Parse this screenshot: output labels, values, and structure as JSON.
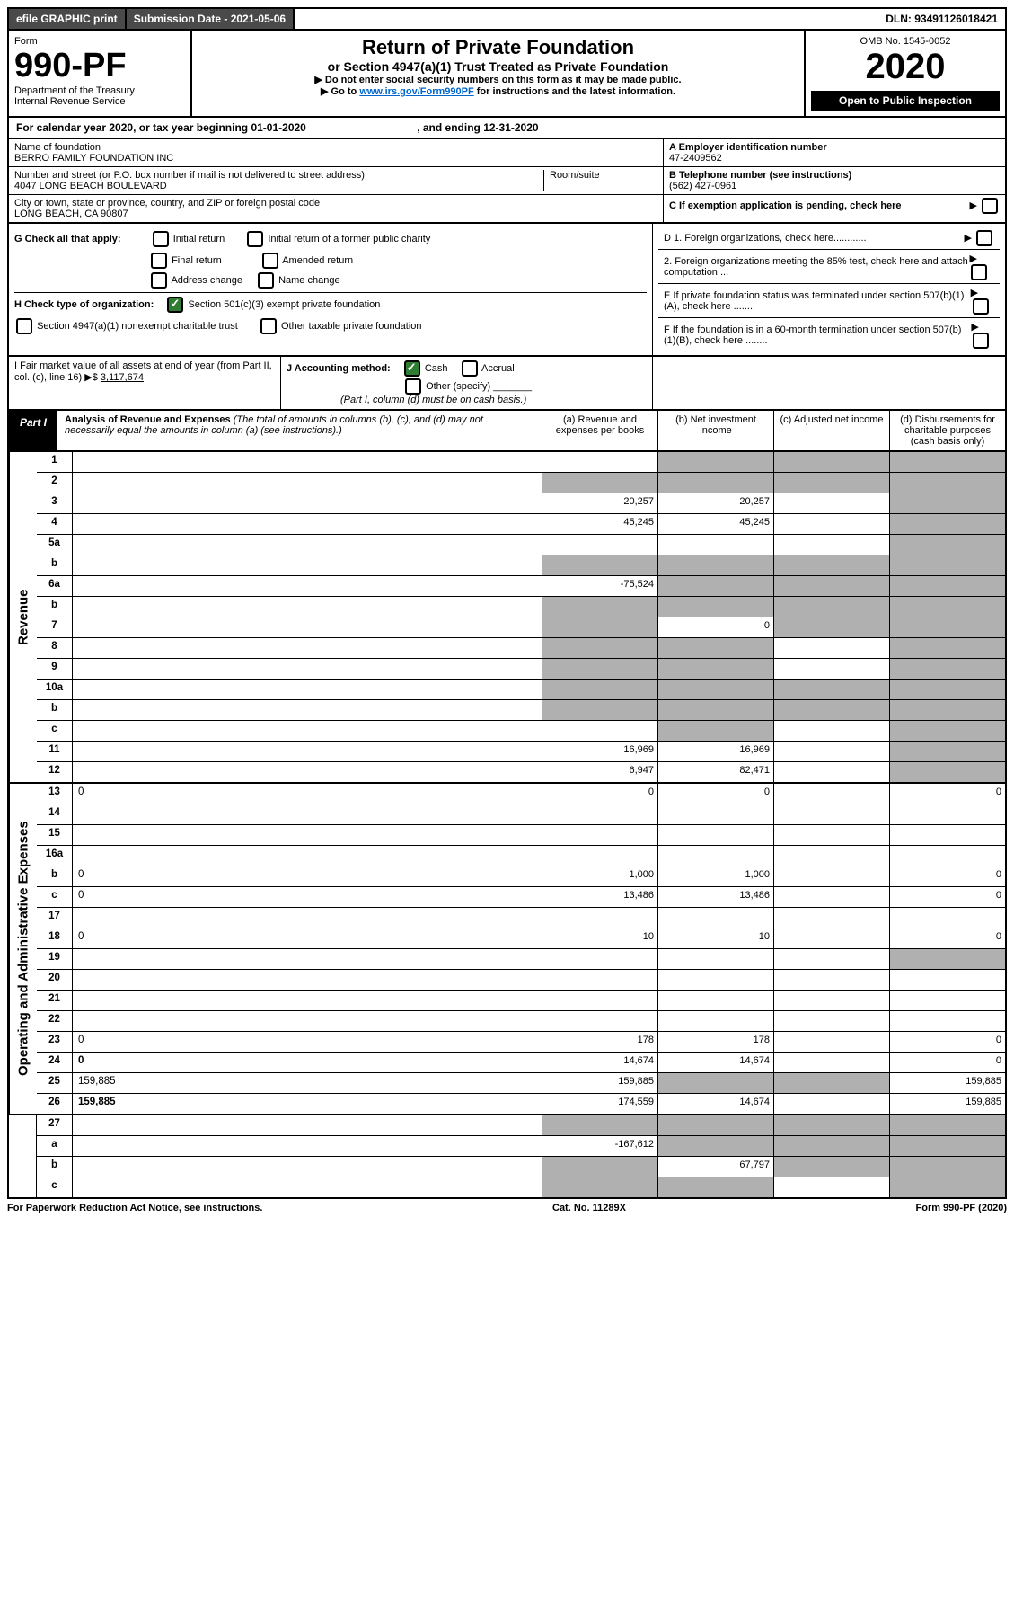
{
  "top": {
    "efile": "efile GRAPHIC print",
    "submission": "Submission Date - 2021-05-06",
    "dln": "DLN: 93491126018421"
  },
  "header": {
    "form_word": "Form",
    "form_no": "990-PF",
    "dept": "Department of the Treasury",
    "irs": "Internal Revenue Service",
    "title": "Return of Private Foundation",
    "subtitle": "or Section 4947(a)(1) Trust Treated as Private Foundation",
    "note1": "▶ Do not enter social security numbers on this form as it may be made public.",
    "note2_pre": "▶ Go to ",
    "note2_link": "www.irs.gov/Form990PF",
    "note2_post": " for instructions and the latest information.",
    "omb": "OMB No. 1545-0052",
    "year": "2020",
    "open": "Open to Public Inspection"
  },
  "calendar": {
    "text_pre": "For calendar year 2020, or tax year beginning ",
    "begin": "01-01-2020",
    "text_mid": " , and ending ",
    "end": "12-31-2020"
  },
  "entity": {
    "name_label": "Name of foundation",
    "name": "BERRO FAMILY FOUNDATION INC",
    "addr_label": "Number and street (or P.O. box number if mail is not delivered to street address)",
    "addr": "4047 LONG BEACH BOULEVARD",
    "room_label": "Room/suite",
    "city_label": "City or town, state or province, country, and ZIP or foreign postal code",
    "city": "LONG BEACH, CA  90807",
    "a_label": "A Employer identification number",
    "a_val": "47-2409562",
    "b_label": "B Telephone number (see instructions)",
    "b_val": "(562) 427-0961",
    "c_label": "C If exemption application is pending, check here"
  },
  "checks": {
    "g_label": "G Check all that apply:",
    "g1": "Initial return",
    "g2": "Initial return of a former public charity",
    "g3": "Final return",
    "g4": "Amended return",
    "g5": "Address change",
    "g6": "Name change",
    "h_label": "H Check type of organization:",
    "h1": "Section 501(c)(3) exempt private foundation",
    "h2": "Section 4947(a)(1) nonexempt charitable trust",
    "h3": "Other taxable private foundation",
    "d1": "D 1. Foreign organizations, check here............",
    "d2": "2. Foreign organizations meeting the 85% test, check here and attach computation ...",
    "e": "E  If private foundation status was terminated under section 507(b)(1)(A), check here .......",
    "f": "F  If the foundation is in a 60-month termination under section 507(b)(1)(B), check here ........"
  },
  "ij": {
    "i_label": "I Fair market value of all assets at end of year (from Part II, col. (c), line 16)  ▶$ ",
    "i_val": "3,117,674",
    "j_label": "J Accounting method:",
    "j_cash": "Cash",
    "j_accrual": "Accrual",
    "j_other": "Other (specify)",
    "j_note": "(Part I, column (d) must be on cash basis.)"
  },
  "part1": {
    "label": "Part I",
    "title": "Analysis of Revenue and Expenses",
    "desc": " (The total of amounts in columns (b), (c), and (d) may not necessarily equal the amounts in column (a) (see instructions).)",
    "col_a": "(a)   Revenue and expenses per books",
    "col_b": "(b)  Net investment income",
    "col_c": "(c)  Adjusted net income",
    "col_d": "(d)  Disbursements for charitable purposes (cash basis only)"
  },
  "vert": {
    "revenue": "Revenue",
    "expenses": "Operating and Administrative Expenses"
  },
  "rows": [
    {
      "n": "1",
      "d": "",
      "a": "",
      "b": "",
      "c": "",
      "sb": true,
      "sc": true,
      "sd": true
    },
    {
      "n": "2",
      "d": "",
      "a": "",
      "b": "",
      "c": "",
      "sa": true,
      "sb": true,
      "sc": true,
      "sd": true
    },
    {
      "n": "3",
      "d": "",
      "a": "20,257",
      "b": "20,257",
      "c": "",
      "sd": true
    },
    {
      "n": "4",
      "d": "",
      "a": "45,245",
      "b": "45,245",
      "c": "",
      "sd": true
    },
    {
      "n": "5a",
      "d": "",
      "a": "",
      "b": "",
      "c": "",
      "sd": true
    },
    {
      "n": "b",
      "d": "",
      "a": "",
      "b": "",
      "c": "",
      "sa": true,
      "sb": true,
      "sc": true,
      "sd": true
    },
    {
      "n": "6a",
      "d": "",
      "a": "-75,524",
      "b": "",
      "c": "",
      "sb": true,
      "sc": true,
      "sd": true
    },
    {
      "n": "b",
      "d": "",
      "a": "",
      "b": "",
      "c": "",
      "sa": true,
      "sb": true,
      "sc": true,
      "sd": true
    },
    {
      "n": "7",
      "d": "",
      "a": "",
      "b": "0",
      "c": "",
      "sa": true,
      "sc": true,
      "sd": true
    },
    {
      "n": "8",
      "d": "",
      "a": "",
      "b": "",
      "c": "",
      "sa": true,
      "sb": true,
      "sd": true
    },
    {
      "n": "9",
      "d": "",
      "a": "",
      "b": "",
      "c": "",
      "sa": true,
      "sb": true,
      "sd": true
    },
    {
      "n": "10a",
      "d": "",
      "a": "",
      "b": "",
      "c": "",
      "sa": true,
      "sb": true,
      "sc": true,
      "sd": true
    },
    {
      "n": "b",
      "d": "",
      "a": "",
      "b": "",
      "c": "",
      "sa": true,
      "sb": true,
      "sc": true,
      "sd": true
    },
    {
      "n": "c",
      "d": "",
      "a": "",
      "b": "",
      "c": "",
      "sb": true,
      "sd": true
    },
    {
      "n": "11",
      "d": "",
      "a": "16,969",
      "b": "16,969",
      "c": "",
      "sd": true
    },
    {
      "n": "12",
      "d": "",
      "a": "6,947",
      "b": "82,471",
      "c": "",
      "sd": true,
      "bold": true
    }
  ],
  "exp_rows": [
    {
      "n": "13",
      "d": "0",
      "a": "0",
      "b": "0",
      "c": ""
    },
    {
      "n": "14",
      "d": "",
      "a": "",
      "b": "",
      "c": ""
    },
    {
      "n": "15",
      "d": "",
      "a": "",
      "b": "",
      "c": ""
    },
    {
      "n": "16a",
      "d": "",
      "a": "",
      "b": "",
      "c": ""
    },
    {
      "n": "b",
      "d": "0",
      "a": "1,000",
      "b": "1,000",
      "c": ""
    },
    {
      "n": "c",
      "d": "0",
      "a": "13,486",
      "b": "13,486",
      "c": ""
    },
    {
      "n": "17",
      "d": "",
      "a": "",
      "b": "",
      "c": ""
    },
    {
      "n": "18",
      "d": "0",
      "a": "10",
      "b": "10",
      "c": ""
    },
    {
      "n": "19",
      "d": "",
      "a": "",
      "b": "",
      "c": "",
      "sd": true
    },
    {
      "n": "20",
      "d": "",
      "a": "",
      "b": "",
      "c": ""
    },
    {
      "n": "21",
      "d": "",
      "a": "",
      "b": "",
      "c": ""
    },
    {
      "n": "22",
      "d": "",
      "a": "",
      "b": "",
      "c": ""
    },
    {
      "n": "23",
      "d": "0",
      "a": "178",
      "b": "178",
      "c": ""
    },
    {
      "n": "24",
      "d": "0",
      "a": "14,674",
      "b": "14,674",
      "c": "",
      "bold": true
    },
    {
      "n": "25",
      "d": "159,885",
      "a": "159,885",
      "b": "",
      "c": "",
      "sb": true,
      "sc": true
    },
    {
      "n": "26",
      "d": "159,885",
      "a": "174,559",
      "b": "14,674",
      "c": "",
      "bold": true
    }
  ],
  "sub_rows": [
    {
      "n": "27",
      "d": "",
      "a": "",
      "b": "",
      "c": "",
      "sa": true,
      "sb": true,
      "sc": true,
      "sd": true
    },
    {
      "n": "a",
      "d": "",
      "a": "-167,612",
      "b": "",
      "c": "",
      "sb": true,
      "sc": true,
      "sd": true,
      "bold": true
    },
    {
      "n": "b",
      "d": "",
      "a": "",
      "b": "67,797",
      "c": "",
      "sa": true,
      "sc": true,
      "sd": true,
      "bold": true
    },
    {
      "n": "c",
      "d": "",
      "a": "",
      "b": "",
      "c": "",
      "sa": true,
      "sb": true,
      "sd": true,
      "bold": true
    }
  ],
  "footer": {
    "left": "For Paperwork Reduction Act Notice, see instructions.",
    "mid": "Cat. No. 11289X",
    "right": "Form 990-PF (2020)"
  }
}
